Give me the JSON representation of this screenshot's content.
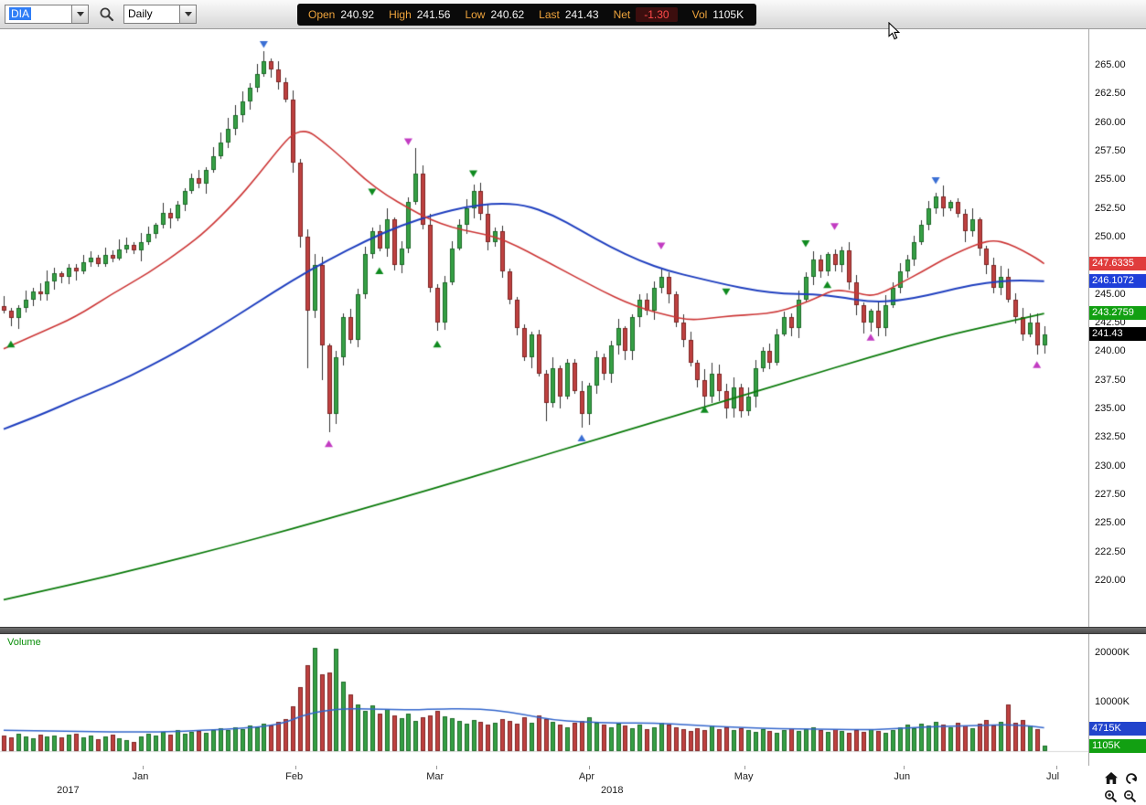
{
  "toolbar": {
    "symbol": "DIA",
    "timeframe": "Daily",
    "quote_fields": [
      {
        "label": "Open",
        "value": "240.92"
      },
      {
        "label": "High",
        "value": "241.56"
      },
      {
        "label": "Low",
        "value": "240.62"
      },
      {
        "label": "Last",
        "value": "241.43"
      },
      {
        "label": "Net",
        "value": "-1.30"
      },
      {
        "label": "Vol",
        "value": "1105K"
      }
    ]
  },
  "price_axis": {
    "min": 220,
    "max": 265,
    "step": 2.5,
    "ticks": [
      "265.00",
      "262.50",
      "260.00",
      "257.50",
      "255.00",
      "252.50",
      "250.00",
      "247.50",
      "245.00",
      "242.50",
      "240.00",
      "237.50",
      "235.00",
      "232.50",
      "230.00",
      "227.50",
      "225.00",
      "222.50",
      "220.00"
    ],
    "tags": [
      {
        "name": "fast-ma-price-tag",
        "value": "247.6335",
        "price": 247.6335,
        "color": "#e03c3c"
      },
      {
        "name": "mid-ma-price-tag",
        "value": "246.1072",
        "price": 246.1072,
        "color": "#1f3fd9"
      },
      {
        "name": "slow-ma-price-tag",
        "value": "243.2759",
        "price": 243.2759,
        "color": "#12a012"
      },
      {
        "name": "last-price-tag",
        "value": "241.43",
        "price": 241.43,
        "color": "#000000"
      }
    ]
  },
  "chart_data": {
    "type": "candlestick",
    "title": "DIA Daily",
    "ylim": [
      220,
      265
    ],
    "colors": {
      "up": "#36a045",
      "up_border": "#1d6b28",
      "down": "#bf4140",
      "down_border": "#7e2423"
    },
    "closes": [
      243.5,
      242.9,
      243.8,
      244.5,
      245.2,
      245.0,
      246.1,
      246.8,
      246.5,
      247.3,
      247.0,
      247.8,
      248.2,
      247.6,
      248.4,
      248.1,
      248.9,
      249.3,
      248.8,
      249.5,
      250.2,
      251.0,
      252.1,
      251.6,
      252.8,
      254.0,
      255.1,
      254.6,
      255.8,
      257.0,
      258.2,
      259.4,
      260.6,
      261.8,
      263.0,
      264.2,
      265.3,
      264.6,
      263.5,
      262.0,
      256.5,
      250.0,
      243.5,
      247.5,
      240.5,
      234.5,
      239.5,
      243.0,
      241.0,
      245.0,
      248.5,
      250.5,
      249.0,
      251.5,
      247.5,
      249.0,
      253.0,
      255.5,
      251.0,
      245.5,
      242.5,
      246.0,
      249.0,
      251.0,
      252.5,
      254.0,
      252.0,
      249.5,
      250.5,
      247.0,
      244.5,
      242.0,
      239.5,
      241.5,
      238.0,
      235.5,
      238.5,
      236.0,
      239.0,
      236.5,
      234.5,
      237.0,
      239.5,
      238.0,
      240.5,
      242.0,
      240.0,
      243.0,
      244.5,
      243.5,
      245.5,
      246.5,
      245.0,
      242.5,
      241.0,
      239.0,
      237.5,
      236.0,
      238.0,
      236.5,
      235.0,
      236.8,
      234.8,
      236.0,
      238.5,
      240.0,
      239.0,
      241.5,
      243.0,
      242.0,
      244.5,
      246.5,
      248.0,
      247.0,
      248.5,
      247.5,
      248.8,
      246.0,
      244.0,
      242.5,
      243.5,
      242.0,
      244.0,
      245.5,
      247.0,
      248.0,
      249.5,
      251.0,
      252.5,
      253.5,
      252.5,
      253.0,
      252.0,
      250.5,
      251.5,
      249.0,
      247.5,
      245.5,
      246.5,
      244.5,
      243.0,
      241.5,
      242.5,
      240.5,
      241.43
    ],
    "high_overrides": {
      "36": 266.2,
      "57": 257.7
    },
    "low_overrides": {
      "42": 238.5,
      "44": 237.5,
      "45": 232.9,
      "75": 233.9,
      "80": 233.3,
      "102": 234.2,
      "143": 239.7
    },
    "moving_averages": [
      {
        "name": "ma-slow",
        "color": "#0a7a0a",
        "points": [
          [
            0,
            218.3
          ],
          [
            10,
            219.7
          ],
          [
            20,
            221.2
          ],
          [
            30,
            222.8
          ],
          [
            40,
            224.5
          ],
          [
            50,
            226.3
          ],
          [
            60,
            228.1
          ],
          [
            70,
            230.0
          ],
          [
            80,
            231.9
          ],
          [
            90,
            233.8
          ],
          [
            100,
            235.7
          ],
          [
            110,
            237.6
          ],
          [
            120,
            239.5
          ],
          [
            130,
            241.3
          ],
          [
            137,
            242.3
          ],
          [
            144,
            243.28
          ]
        ]
      },
      {
        "name": "ma-mid",
        "color": "#1f3fbf",
        "points": [
          [
            0,
            233.2
          ],
          [
            5,
            234.4
          ],
          [
            10,
            235.8
          ],
          [
            15,
            237.1
          ],
          [
            20,
            238.6
          ],
          [
            25,
            240.3
          ],
          [
            30,
            242.2
          ],
          [
            35,
            244.2
          ],
          [
            40,
            246.2
          ],
          [
            45,
            248.0
          ],
          [
            50,
            249.6
          ],
          [
            55,
            251.0
          ],
          [
            60,
            252.0
          ],
          [
            64,
            252.6
          ],
          [
            68,
            252.9
          ],
          [
            72,
            252.8
          ],
          [
            76,
            251.9
          ],
          [
            80,
            250.5
          ],
          [
            84,
            249.1
          ],
          [
            88,
            247.9
          ],
          [
            92,
            247.0
          ],
          [
            96,
            246.4
          ],
          [
            100,
            245.8
          ],
          [
            104,
            245.3
          ],
          [
            108,
            245.0
          ],
          [
            112,
            245.0
          ],
          [
            116,
            244.7
          ],
          [
            120,
            244.3
          ],
          [
            124,
            244.4
          ],
          [
            128,
            244.9
          ],
          [
            132,
            245.5
          ],
          [
            136,
            246.0
          ],
          [
            140,
            246.2
          ],
          [
            144,
            246.11
          ]
        ]
      },
      {
        "name": "ma-fast",
        "color": "#cc3636",
        "points": [
          [
            0,
            240.2
          ],
          [
            5,
            241.6
          ],
          [
            10,
            243.0
          ],
          [
            15,
            245.0
          ],
          [
            20,
            246.8
          ],
          [
            25,
            249.0
          ],
          [
            28,
            250.5
          ],
          [
            32,
            253.0
          ],
          [
            35,
            255.2
          ],
          [
            38,
            257.6
          ],
          [
            40,
            259.0
          ],
          [
            42,
            259.3
          ],
          [
            44,
            258.4
          ],
          [
            47,
            256.8
          ],
          [
            50,
            255.0
          ],
          [
            53,
            253.6
          ],
          [
            56,
            252.5
          ],
          [
            59,
            251.5
          ],
          [
            62,
            250.8
          ],
          [
            65,
            250.4
          ],
          [
            68,
            250.0
          ],
          [
            71,
            249.2
          ],
          [
            74,
            248.2
          ],
          [
            77,
            247.2
          ],
          [
            80,
            246.2
          ],
          [
            83,
            245.2
          ],
          [
            86,
            244.3
          ],
          [
            89,
            243.6
          ],
          [
            92,
            243.1
          ],
          [
            95,
            242.7
          ],
          [
            98,
            242.9
          ],
          [
            101,
            243.1
          ],
          [
            104,
            243.2
          ],
          [
            107,
            243.4
          ],
          [
            110,
            244.0
          ],
          [
            113,
            244.8
          ],
          [
            115,
            245.4
          ],
          [
            118,
            245.1
          ],
          [
            120,
            244.8
          ],
          [
            122,
            245.2
          ],
          [
            124,
            245.9
          ],
          [
            127,
            246.9
          ],
          [
            130,
            248.0
          ],
          [
            133,
            248.9
          ],
          [
            135,
            249.4
          ],
          [
            137,
            249.7
          ],
          [
            139,
            249.4
          ],
          [
            141,
            248.8
          ],
          [
            143,
            248.1
          ],
          [
            144,
            247.63
          ]
        ]
      }
    ],
    "marker_colors": {
      "blue": "#3b6fd4",
      "magenta": "#c23bc2",
      "green": "#0f8a1f"
    },
    "markers": [
      {
        "i": 1,
        "price": 240.6,
        "color": "green",
        "dir": "up"
      },
      {
        "i": 36,
        "price": 266.8,
        "color": "blue",
        "dir": "down"
      },
      {
        "i": 45,
        "price": 231.9,
        "color": "magenta",
        "dir": "up"
      },
      {
        "i": 51,
        "price": 253.9,
        "color": "green",
        "dir": "down"
      },
      {
        "i": 52,
        "price": 247.0,
        "color": "green",
        "dir": "up"
      },
      {
        "i": 56,
        "price": 258.3,
        "color": "magenta",
        "dir": "down"
      },
      {
        "i": 60,
        "price": 240.6,
        "color": "green",
        "dir": "up"
      },
      {
        "i": 65,
        "price": 255.5,
        "color": "green",
        "dir": "down"
      },
      {
        "i": 80,
        "price": 232.4,
        "color": "blue",
        "dir": "up"
      },
      {
        "i": 91,
        "price": 249.2,
        "color": "magenta",
        "dir": "down"
      },
      {
        "i": 97,
        "price": 234.9,
        "color": "green",
        "dir": "up"
      },
      {
        "i": 100,
        "price": 245.2,
        "color": "green",
        "dir": "down"
      },
      {
        "i": 111,
        "price": 249.4,
        "color": "green",
        "dir": "down"
      },
      {
        "i": 114,
        "price": 245.8,
        "color": "green",
        "dir": "up"
      },
      {
        "i": 115,
        "price": 250.9,
        "color": "magenta",
        "dir": "down"
      },
      {
        "i": 120,
        "price": 241.2,
        "color": "magenta",
        "dir": "up"
      },
      {
        "i": 129,
        "price": 254.9,
        "color": "blue",
        "dir": "down"
      },
      {
        "i": 143,
        "price": 238.8,
        "color": "magenta",
        "dir": "up"
      }
    ],
    "x_months": [
      {
        "label": "Jan",
        "i": 19.2
      },
      {
        "label": "Feb",
        "i": 40.4
      },
      {
        "label": "Mar",
        "i": 59.9
      },
      {
        "label": "Apr",
        "i": 81.0
      },
      {
        "label": "May",
        "i": 102.5
      },
      {
        "label": "Jun",
        "i": 124.6
      },
      {
        "label": "Jul",
        "i": 145.7
      }
    ],
    "x_years": [
      {
        "label": "2017",
        "i": 9.0
      },
      {
        "label": "2018",
        "i": 84.3
      }
    ]
  },
  "volume": {
    "label": "Volume",
    "label_color": "#0b8f0b",
    "max": 22000,
    "ticks": [
      {
        "label": "20000K",
        "value": 20000
      },
      {
        "label": "10000K",
        "value": 10000
      }
    ],
    "tags": [
      {
        "name": "volume-ma-tag",
        "value": "4715K",
        "v": 4715,
        "color": "#2244cc"
      },
      {
        "name": "last-volume-tag",
        "value": "1105K",
        "v": 1105,
        "color": "#12a012"
      }
    ],
    "ma_color": "#3366cc",
    "ma_points": [
      [
        0,
        4200
      ],
      [
        10,
        4000
      ],
      [
        20,
        3800
      ],
      [
        30,
        4300
      ],
      [
        38,
        5200
      ],
      [
        42,
        7600
      ],
      [
        46,
        8500
      ],
      [
        50,
        8600
      ],
      [
        55,
        8300
      ],
      [
        60,
        8500
      ],
      [
        64,
        8600
      ],
      [
        68,
        8300
      ],
      [
        72,
        7400
      ],
      [
        76,
        6300
      ],
      [
        80,
        5900
      ],
      [
        85,
        5700
      ],
      [
        90,
        5700
      ],
      [
        95,
        5300
      ],
      [
        100,
        4900
      ],
      [
        105,
        4600
      ],
      [
        110,
        4500
      ],
      [
        115,
        4400
      ],
      [
        120,
        4300
      ],
      [
        125,
        4700
      ],
      [
        130,
        5000
      ],
      [
        135,
        5200
      ],
      [
        139,
        5400
      ],
      [
        142,
        5100
      ],
      [
        144,
        4715
      ]
    ],
    "values": [
      3200,
      2800,
      3500,
      3000,
      2600,
      3400,
      2900,
      3100,
      2700,
      3300,
      3600,
      2800,
      3200,
      2500,
      3000,
      3400,
      2600,
      2200,
      1800,
      2900,
      3500,
      3200,
      3800,
      3400,
      4200,
      3600,
      3900,
      4100,
      3700,
      4300,
      4600,
      4200,
      4800,
      4400,
      5200,
      4800,
      5600,
      5200,
      6000,
      6500,
      9000,
      13000,
      17500,
      21000,
      15500,
      16000,
      20800,
      14000,
      11500,
      9500,
      8200,
      9200,
      7600,
      8600,
      7200,
      6600,
      7600,
      6200,
      6900,
      7300,
      8100,
      7100,
      6600,
      6100,
      5600,
      6300,
      5900,
      5300,
      5700,
      6500,
      6100,
      5500,
      6900,
      5700,
      7300,
      6500,
      5900,
      5300,
      4900,
      5700,
      6100,
      6900,
      5700,
      5300,
      4900,
      5500,
      5100,
      4700,
      5300,
      4500,
      4900,
      5700,
      5300,
      4900,
      4500,
      4100,
      4700,
      4300,
      5100,
      4500,
      4900,
      4300,
      4700,
      4300,
      3900,
      4500,
      4100,
      3700,
      4300,
      4700,
      4100,
      4500,
      4900,
      4300,
      3900,
      4500,
      4100,
      3700,
      4300,
      3900,
      4500,
      4100,
      3700,
      4300,
      4900,
      5300,
      4700,
      5500,
      5100,
      5900,
      5300,
      4900,
      5700,
      5100,
      4700,
      5500,
      6300,
      5100,
      5900,
      9500,
      5700,
      6300,
      5100,
      4400,
      1105
    ]
  }
}
